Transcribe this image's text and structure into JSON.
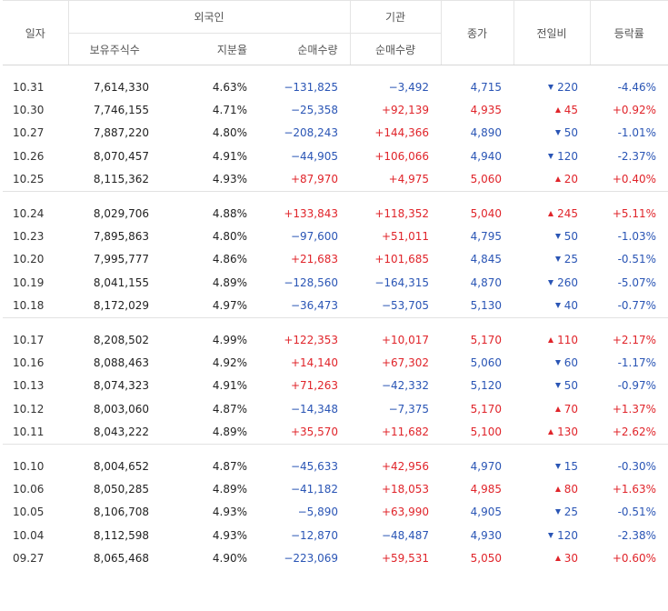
{
  "headers": {
    "date": "일자",
    "foreign": "외국인",
    "institution": "기관",
    "close": "종가",
    "change": "전일비",
    "rate": "등락률",
    "holdings": "보유주식수",
    "share": "지분율",
    "foreign_net": "순매수량",
    "inst_net": "순매수량"
  },
  "groups": [
    {
      "rows": [
        {
          "date": "10.31",
          "holdings": "7,614,330",
          "share": "4.63%",
          "foreign_net": "−131,825",
          "inst_net": "−3,492",
          "close": "4,715",
          "change": "220",
          "rate": "-4.46%",
          "dir": "down",
          "fdir": "down",
          "idir": "down"
        },
        {
          "date": "10.30",
          "holdings": "7,746,155",
          "share": "4.71%",
          "foreign_net": "−25,358",
          "inst_net": "+92,139",
          "close": "4,935",
          "change": "45",
          "rate": "+0.92%",
          "dir": "up",
          "fdir": "down",
          "idir": "up"
        },
        {
          "date": "10.27",
          "holdings": "7,887,220",
          "share": "4.80%",
          "foreign_net": "−208,243",
          "inst_net": "+144,366",
          "close": "4,890",
          "change": "50",
          "rate": "-1.01%",
          "dir": "down",
          "fdir": "down",
          "idir": "up"
        },
        {
          "date": "10.26",
          "holdings": "8,070,457",
          "share": "4.91%",
          "foreign_net": "−44,905",
          "inst_net": "+106,066",
          "close": "4,940",
          "change": "120",
          "rate": "-2.37%",
          "dir": "down",
          "fdir": "down",
          "idir": "up"
        },
        {
          "date": "10.25",
          "holdings": "8,115,362",
          "share": "4.93%",
          "foreign_net": "+87,970",
          "inst_net": "+4,975",
          "close": "5,060",
          "change": "20",
          "rate": "+0.40%",
          "dir": "up",
          "fdir": "up",
          "idir": "up"
        }
      ]
    },
    {
      "rows": [
        {
          "date": "10.24",
          "holdings": "8,029,706",
          "share": "4.88%",
          "foreign_net": "+133,843",
          "inst_net": "+118,352",
          "close": "5,040",
          "change": "245",
          "rate": "+5.11%",
          "dir": "up",
          "fdir": "up",
          "idir": "up"
        },
        {
          "date": "10.23",
          "holdings": "7,895,863",
          "share": "4.80%",
          "foreign_net": "−97,600",
          "inst_net": "+51,011",
          "close": "4,795",
          "change": "50",
          "rate": "-1.03%",
          "dir": "down",
          "fdir": "down",
          "idir": "up"
        },
        {
          "date": "10.20",
          "holdings": "7,995,777",
          "share": "4.86%",
          "foreign_net": "+21,683",
          "inst_net": "+101,685",
          "close": "4,845",
          "change": "25",
          "rate": "-0.51%",
          "dir": "down",
          "fdir": "up",
          "idir": "up"
        },
        {
          "date": "10.19",
          "holdings": "8,041,155",
          "share": "4.89%",
          "foreign_net": "−128,560",
          "inst_net": "−164,315",
          "close": "4,870",
          "change": "260",
          "rate": "-5.07%",
          "dir": "down",
          "fdir": "down",
          "idir": "down"
        },
        {
          "date": "10.18",
          "holdings": "8,172,029",
          "share": "4.97%",
          "foreign_net": "−36,473",
          "inst_net": "−53,705",
          "close": "5,130",
          "change": "40",
          "rate": "-0.77%",
          "dir": "down",
          "fdir": "down",
          "idir": "down"
        }
      ]
    },
    {
      "rows": [
        {
          "date": "10.17",
          "holdings": "8,208,502",
          "share": "4.99%",
          "foreign_net": "+122,353",
          "inst_net": "+10,017",
          "close": "5,170",
          "change": "110",
          "rate": "+2.17%",
          "dir": "up",
          "fdir": "up",
          "idir": "up"
        },
        {
          "date": "10.16",
          "holdings": "8,088,463",
          "share": "4.92%",
          "foreign_net": "+14,140",
          "inst_net": "+67,302",
          "close": "5,060",
          "change": "60",
          "rate": "-1.17%",
          "dir": "down",
          "fdir": "up",
          "idir": "up"
        },
        {
          "date": "10.13",
          "holdings": "8,074,323",
          "share": "4.91%",
          "foreign_net": "+71,263",
          "inst_net": "−42,332",
          "close": "5,120",
          "change": "50",
          "rate": "-0.97%",
          "dir": "down",
          "fdir": "up",
          "idir": "down"
        },
        {
          "date": "10.12",
          "holdings": "8,003,060",
          "share": "4.87%",
          "foreign_net": "−14,348",
          "inst_net": "−7,375",
          "close": "5,170",
          "change": "70",
          "rate": "+1.37%",
          "dir": "up",
          "fdir": "down",
          "idir": "down"
        },
        {
          "date": "10.11",
          "holdings": "8,043,222",
          "share": "4.89%",
          "foreign_net": "+35,570",
          "inst_net": "+11,682",
          "close": "5,100",
          "change": "130",
          "rate": "+2.62%",
          "dir": "up",
          "fdir": "up",
          "idir": "up"
        }
      ]
    },
    {
      "rows": [
        {
          "date": "10.10",
          "holdings": "8,004,652",
          "share": "4.87%",
          "foreign_net": "−45,633",
          "inst_net": "+42,956",
          "close": "4,970",
          "change": "15",
          "rate": "-0.30%",
          "dir": "down",
          "fdir": "down",
          "idir": "up"
        },
        {
          "date": "10.06",
          "holdings": "8,050,285",
          "share": "4.89%",
          "foreign_net": "−41,182",
          "inst_net": "+18,053",
          "close": "4,985",
          "change": "80",
          "rate": "+1.63%",
          "dir": "up",
          "fdir": "down",
          "idir": "up"
        },
        {
          "date": "10.05",
          "holdings": "8,106,708",
          "share": "4.93%",
          "foreign_net": "−5,890",
          "inst_net": "+63,990",
          "close": "4,905",
          "change": "25",
          "rate": "-0.51%",
          "dir": "down",
          "fdir": "down",
          "idir": "up"
        },
        {
          "date": "10.04",
          "holdings": "8,112,598",
          "share": "4.93%",
          "foreign_net": "−12,870",
          "inst_net": "−48,487",
          "close": "4,930",
          "change": "120",
          "rate": "-2.38%",
          "dir": "down",
          "fdir": "down",
          "idir": "down"
        },
        {
          "date": "09.27",
          "holdings": "8,065,468",
          "share": "4.90%",
          "foreign_net": "−223,069",
          "inst_net": "+59,531",
          "close": "5,050",
          "change": "30",
          "rate": "+0.60%",
          "dir": "up",
          "fdir": "down",
          "idir": "up"
        }
      ]
    }
  ]
}
